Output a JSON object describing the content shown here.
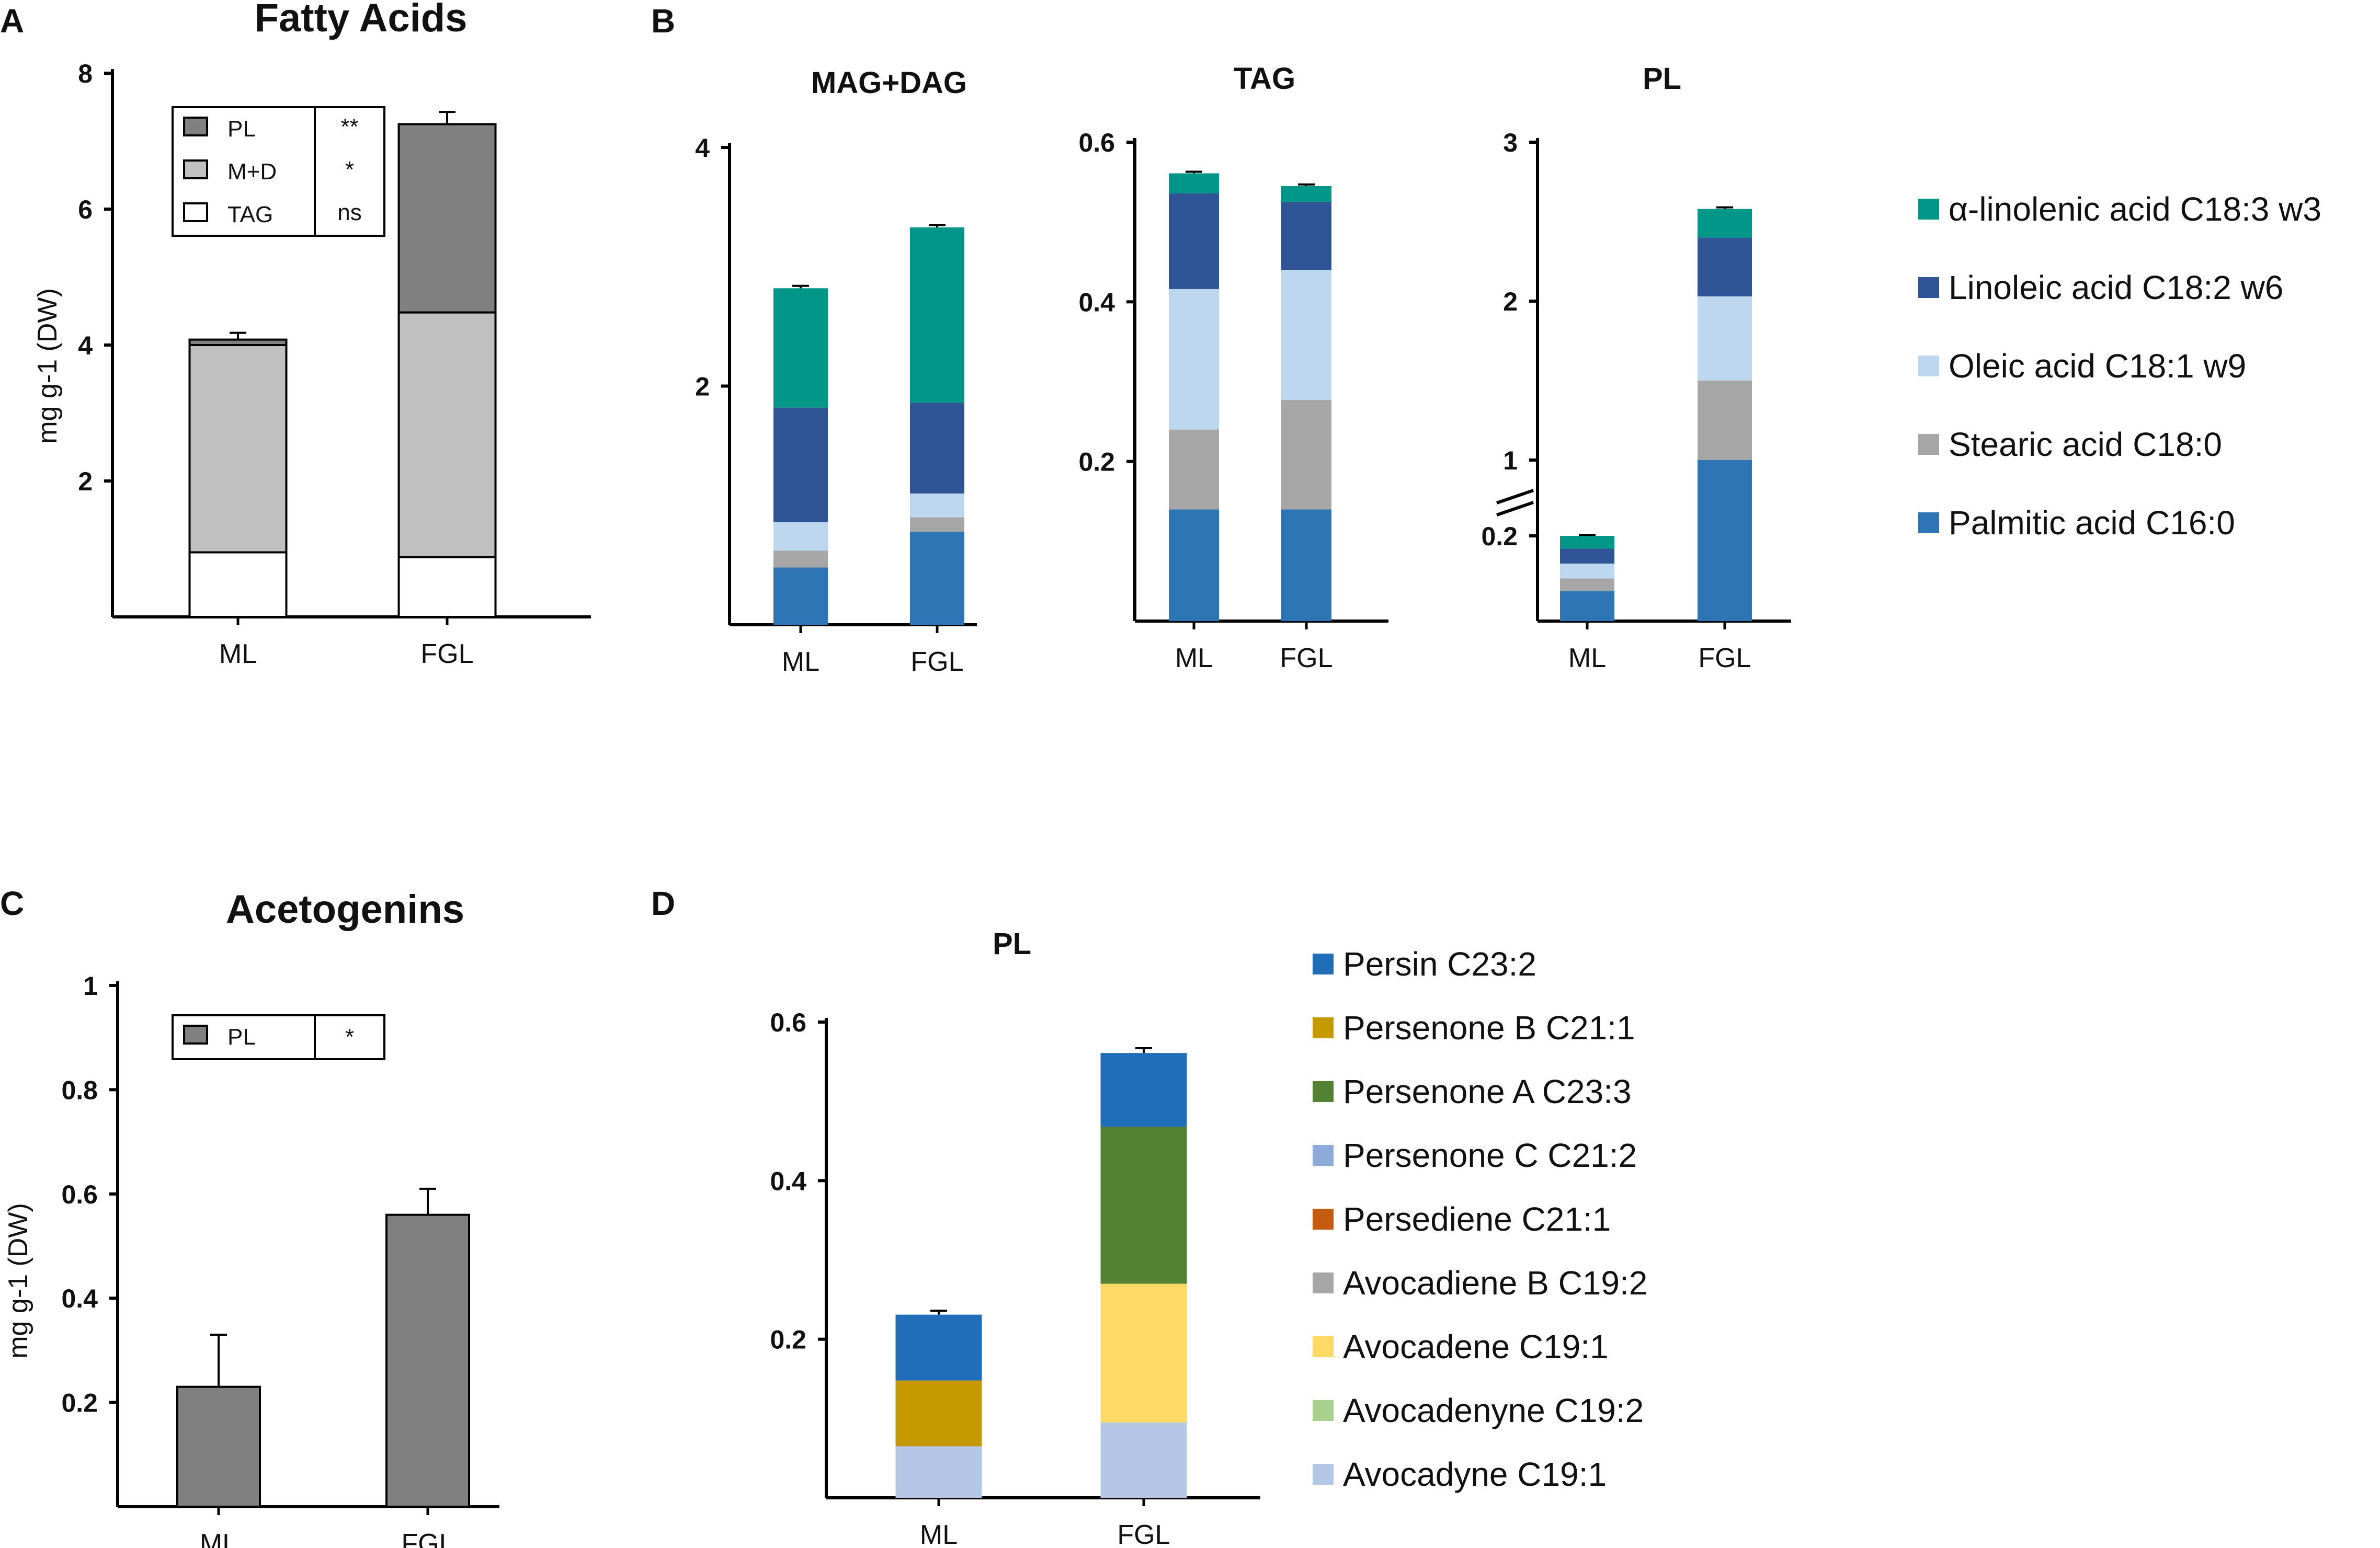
{
  "colors": {
    "pl_gray": "#808080",
    "md_gray": "#c0c0c0",
    "tag_white": "#ffffff",
    "alpha_linolenic": "#009688",
    "linoleic": "#2f5597",
    "oleic": "#bdd7ee",
    "stearic": "#a6a6a6",
    "palmitic": "#2e75b6",
    "persin": "#1f6eb7",
    "persenone_b": "#c49a00",
    "persenone_a": "#548235",
    "persenone_c": "#8eaadb",
    "persediene": "#c55a11",
    "avocadiene_b": "#a6a6a6",
    "avocadene": "#ffd966",
    "avocadenyne": "#a9d18e",
    "avocadyne": "#b4c7e7"
  },
  "panels": {
    "A": {
      "letter": "A",
      "title": "Fatty Acids",
      "legend": [
        {
          "key": "pl_gray",
          "label": "PL",
          "sig": "**"
        },
        {
          "key": "md_gray",
          "label": "M+D",
          "sig": "*"
        },
        {
          "key": "tag_white",
          "label": "TAG",
          "sig": "ns"
        }
      ]
    },
    "B": {
      "letter": "B",
      "legend": [
        {
          "key": "alpha_linolenic",
          "label": "α-linolenic acid C18:3 w3"
        },
        {
          "key": "linoleic",
          "label": "Linoleic acid  C18:2 w6"
        },
        {
          "key": "oleic",
          "label": "Oleic acid C18:1 w9"
        },
        {
          "key": "stearic",
          "label": "Stearic acid C18:0"
        },
        {
          "key": "palmitic",
          "label": "Palmitic acid C16:0"
        }
      ]
    },
    "C": {
      "letter": "C",
      "title": "Acetogenins",
      "legend": [
        {
          "key": "pl_gray",
          "label": "PL",
          "sig": "*"
        }
      ]
    },
    "D": {
      "letter": "D",
      "legend": [
        {
          "key": "persin",
          "label": "Persin  C23:2"
        },
        {
          "key": "persenone_b",
          "label": "Persenone B C21:1"
        },
        {
          "key": "persenone_a",
          "label": "Persenone A C23:3"
        },
        {
          "key": "persenone_c",
          "label": "Persenone C C21:2"
        },
        {
          "key": "persediene",
          "label": "Persediene C21:1"
        },
        {
          "key": "avocadiene_b",
          "label": "Avocadiene B C19:2"
        },
        {
          "key": "avocadene",
          "label": "Avocadene C19:1"
        },
        {
          "key": "avocadenyne",
          "label": "Avocadenyne C19:2"
        },
        {
          "key": "avocadyne",
          "label": "Avocadyne C19:1"
        }
      ]
    }
  },
  "chart_data": [
    {
      "id": "A",
      "type": "bar",
      "stacked": true,
      "title": "Fatty Acids",
      "ylabel": "mg g-1 (DW)",
      "ylim": [
        0,
        8
      ],
      "yticks": [
        2,
        4,
        6,
        8
      ],
      "categories": [
        "ML",
        "FGL"
      ],
      "series": [
        {
          "name": "TAG",
          "color_key": "tag_white",
          "values": [
            0.95,
            0.88
          ]
        },
        {
          "name": "M+D",
          "color_key": "md_gray",
          "values": [
            3.05,
            3.6
          ]
        },
        {
          "name": "PL",
          "color_key": "pl_gray",
          "values": [
            0.08,
            2.77
          ]
        }
      ],
      "errors": [
        0.1,
        0.18
      ]
    },
    {
      "id": "B1",
      "type": "bar",
      "stacked": true,
      "title": "MAG+DAG",
      "ylim": [
        0,
        4
      ],
      "yticks": [
        2,
        4
      ],
      "categories": [
        "ML",
        "FGL"
      ],
      "series": [
        {
          "name": "Palmitic acid C16:0",
          "color_key": "palmitic",
          "values": [
            0.48,
            0.78
          ]
        },
        {
          "name": "Stearic acid C18:0",
          "color_key": "stearic",
          "values": [
            0.14,
            0.12
          ]
        },
        {
          "name": "Oleic acid C18:1 w9",
          "color_key": "oleic",
          "values": [
            0.24,
            0.2
          ]
        },
        {
          "name": "Linoleic acid  C18:2 w6",
          "color_key": "linoleic",
          "values": [
            0.96,
            0.76
          ]
        },
        {
          "name": "α-linolenic acid C18:3 w3",
          "color_key": "alpha_linolenic",
          "values": [
            1.0,
            1.47
          ]
        }
      ],
      "errors": [
        0.02,
        0.02
      ]
    },
    {
      "id": "B2",
      "type": "bar",
      "stacked": true,
      "title": "TAG",
      "ylim": [
        0,
        0.6
      ],
      "yticks": [
        0.2,
        0.4,
        0.6
      ],
      "categories": [
        "ML",
        "FGL"
      ],
      "series": [
        {
          "name": "Palmitic acid C16:0",
          "color_key": "palmitic",
          "values": [
            0.14,
            0.14
          ]
        },
        {
          "name": "Stearic acid C18:0",
          "color_key": "stearic",
          "values": [
            0.1,
            0.137
          ]
        },
        {
          "name": "Oleic acid C18:1 w9",
          "color_key": "oleic",
          "values": [
            0.176,
            0.163
          ]
        },
        {
          "name": "Linoleic acid  C18:2 w6",
          "color_key": "linoleic",
          "values": [
            0.12,
            0.085
          ]
        },
        {
          "name": "α-linolenic acid C18:3 w3",
          "color_key": "alpha_linolenic",
          "values": [
            0.025,
            0.02
          ]
        }
      ],
      "errors": [
        0.002,
        0.002
      ]
    },
    {
      "id": "B3",
      "type": "bar",
      "stacked": true,
      "title": "PL",
      "ylim": [
        0,
        3
      ],
      "yticks": [
        0.2,
        1,
        2,
        3
      ],
      "axis_break": true,
      "categories": [
        "ML",
        "FGL"
      ],
      "series": [
        {
          "name": "Palmitic acid C16:0",
          "color_key": "palmitic",
          "values": [
            0.07,
            1.0
          ]
        },
        {
          "name": "Stearic acid C18:0",
          "color_key": "stearic",
          "values": [
            0.03,
            0.5
          ]
        },
        {
          "name": "Oleic acid C18:1 w9",
          "color_key": "oleic",
          "values": [
            0.035,
            0.53
          ]
        },
        {
          "name": "Linoleic acid  C18:2 w6",
          "color_key": "linoleic",
          "values": [
            0.035,
            0.37
          ]
        },
        {
          "name": "α-linolenic acid C18:3 w3",
          "color_key": "alpha_linolenic",
          "values": [
            0.03,
            0.18
          ]
        }
      ],
      "errors": [
        0.01,
        0.01
      ]
    },
    {
      "id": "C",
      "type": "bar",
      "title": "Acetogenins",
      "ylabel": "mg g-1 (DW)",
      "ylim": [
        0,
        1
      ],
      "yticks": [
        0.2,
        0.4,
        0.6,
        0.8,
        1
      ],
      "categories": [
        "ML",
        "FGL"
      ],
      "series": [
        {
          "name": "PL",
          "color_key": "pl_gray",
          "values": [
            0.23,
            0.56
          ]
        }
      ],
      "errors": [
        0.1,
        0.05
      ]
    },
    {
      "id": "D",
      "type": "bar",
      "stacked": true,
      "title": "PL",
      "ylim": [
        0,
        0.6
      ],
      "yticks": [
        0.2,
        0.4,
        0.6
      ],
      "categories": [
        "ML",
        "FGL"
      ],
      "series": [
        {
          "name": "Avocadyne C19:1",
          "color_key": "avocadyne",
          "values": [
            0.065,
            0.095
          ]
        },
        {
          "name": "Avocadene C19:1",
          "color_key": "avocadene",
          "values": [
            0.0,
            0.175
          ]
        },
        {
          "name": "Persenone A C23:3",
          "color_key": "persenone_a",
          "values": [
            0.0,
            0.198
          ]
        },
        {
          "name": "Persenone B C21:1",
          "color_key": "persenone_b",
          "values": [
            0.083,
            0.0
          ]
        },
        {
          "name": "Persin  C23:2",
          "color_key": "persin",
          "values": [
            0.083,
            0.093
          ]
        }
      ],
      "errors": [
        0.005,
        0.006
      ]
    }
  ]
}
